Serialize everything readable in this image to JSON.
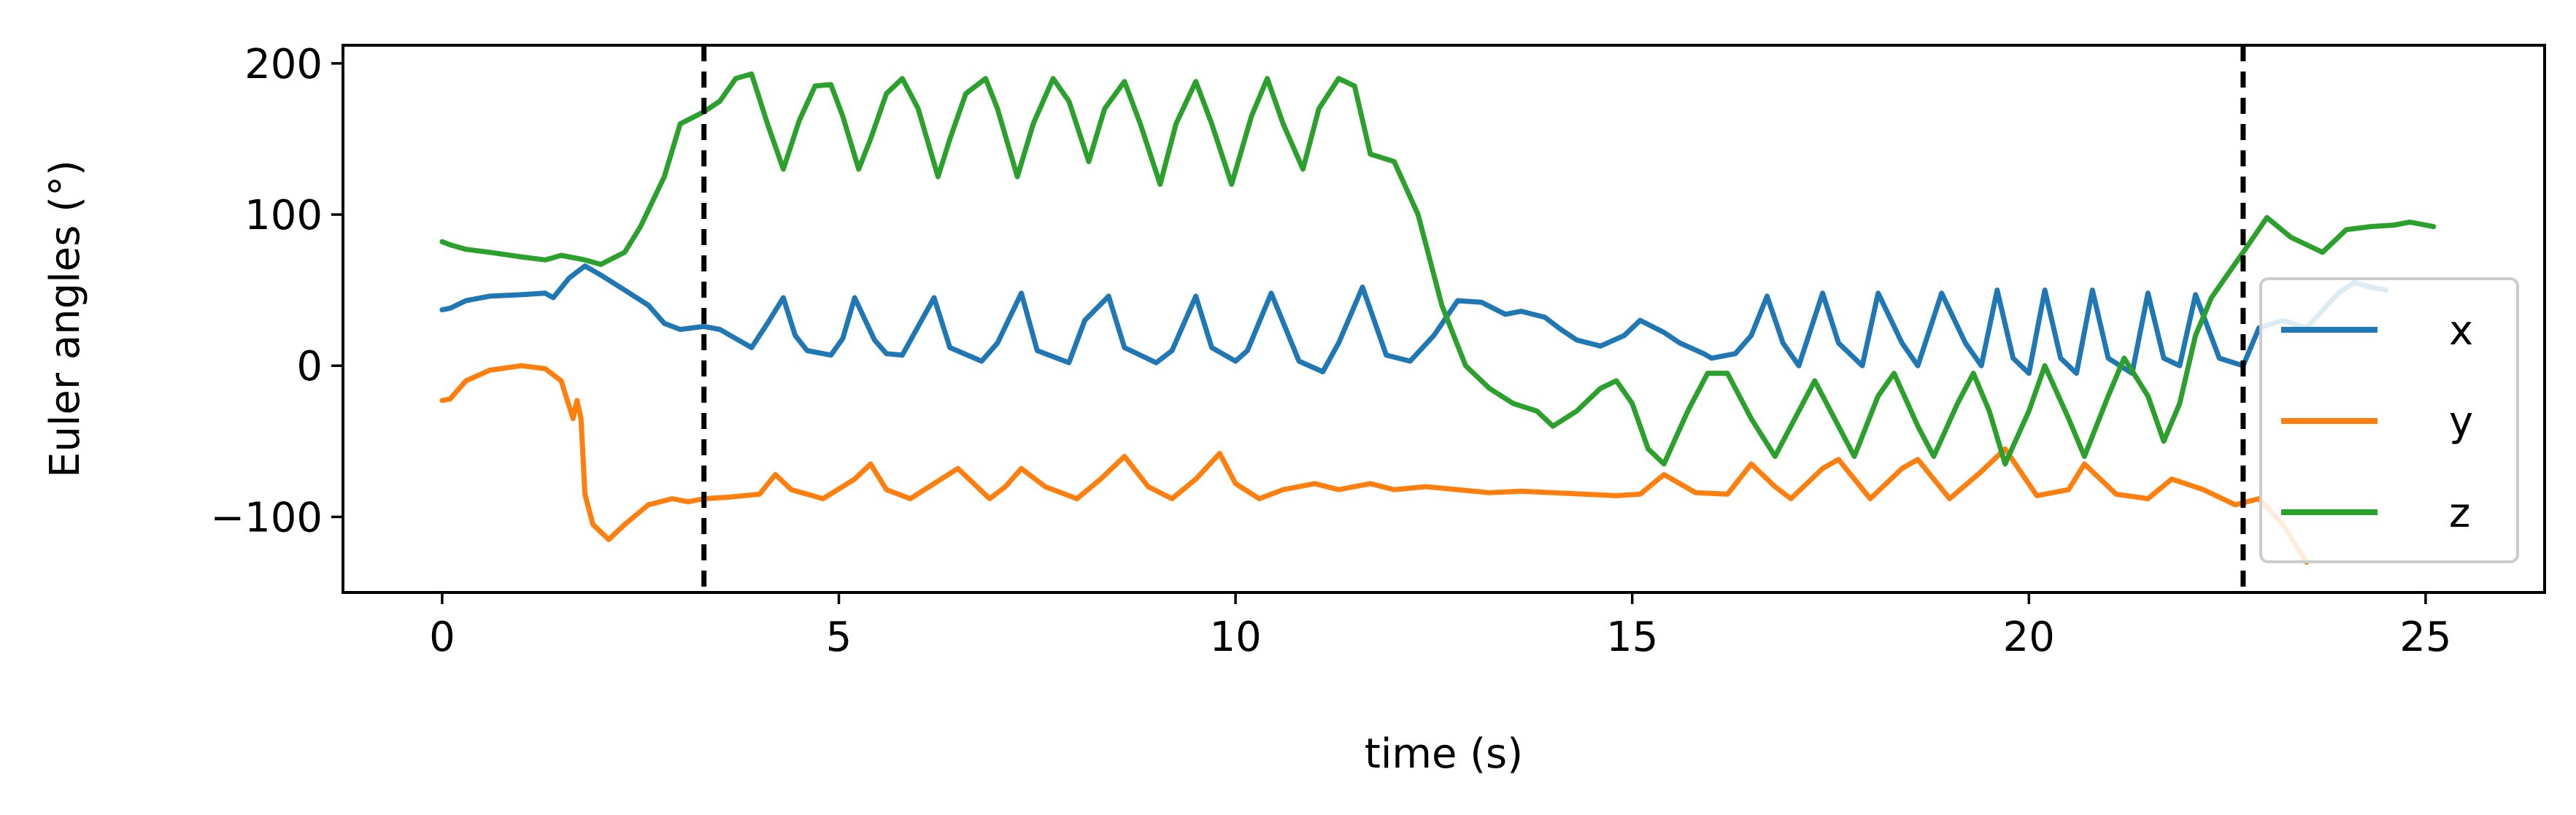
{
  "chart_data": {
    "type": "line",
    "xlabel": "time (s)",
    "ylabel": "Euler angles (°)",
    "xlim": [
      -1.25,
      26.5
    ],
    "ylim": [
      -150,
      212
    ],
    "xticks": [
      0,
      5,
      10,
      15,
      20,
      25
    ],
    "xtick_labels": [
      "0",
      "5",
      "10",
      "15",
      "20",
      "25"
    ],
    "yticks": [
      -100,
      0,
      100,
      200
    ],
    "ytick_labels": [
      "−100",
      "0",
      "100",
      "200"
    ],
    "grid": false,
    "legend_position": "lower right",
    "vertical_markers": {
      "style": "dashed",
      "color": "#000000",
      "x": [
        3.3,
        22.7
      ]
    },
    "series": [
      {
        "name": "x",
        "color": "#1f77b4",
        "x": [
          0,
          0.1,
          0.3,
          0.6,
          1.0,
          1.3,
          1.4,
          1.6,
          1.8,
          2.0,
          2.3,
          2.6,
          2.8,
          3.0,
          3.3,
          3.5,
          3.9,
          4.1,
          4.3,
          4.45,
          4.6,
          4.9,
          5.05,
          5.2,
          5.45,
          5.6,
          5.8,
          6.2,
          6.4,
          6.8,
          7.0,
          7.3,
          7.5,
          7.9,
          8.1,
          8.4,
          8.6,
          9.0,
          9.2,
          9.5,
          9.7,
          10.0,
          10.15,
          10.45,
          10.8,
          11.1,
          11.3,
          11.6,
          11.9,
          12.2,
          12.5,
          12.8,
          13.1,
          13.4,
          13.6,
          13.9,
          14.1,
          14.3,
          14.6,
          14.9,
          15.1,
          15.4,
          15.6,
          15.9,
          16.0,
          16.3,
          16.5,
          16.7,
          16.9,
          17.1,
          17.4,
          17.6,
          17.9,
          18.1,
          18.4,
          18.6,
          18.9,
          19.2,
          19.4,
          19.6,
          19.8,
          20.0,
          20.2,
          20.4,
          20.6,
          20.8,
          21.0,
          21.3,
          21.5,
          21.7,
          21.9,
          22.1,
          22.4,
          22.7,
          22.9,
          23.2,
          23.5,
          23.9,
          24.1,
          24.3,
          24.5
        ],
        "values": [
          37,
          38,
          43,
          46,
          47,
          48,
          45,
          58,
          66,
          60,
          50,
          40,
          28,
          24,
          26,
          24,
          12,
          28,
          45,
          20,
          10,
          7,
          18,
          45,
          17,
          8,
          7,
          45,
          12,
          3,
          15,
          48,
          10,
          2,
          30,
          46,
          12,
          2,
          10,
          46,
          12,
          3,
          10,
          48,
          3,
          -4,
          15,
          52,
          7,
          3,
          20,
          43,
          42,
          34,
          36,
          32,
          24,
          17,
          13,
          20,
          30,
          22,
          15,
          8,
          5,
          8,
          20,
          46,
          15,
          0,
          48,
          15,
          0,
          48,
          15,
          0,
          48,
          15,
          0,
          50,
          5,
          -5,
          50,
          5,
          -5,
          50,
          5,
          -5,
          48,
          5,
          0,
          47,
          5,
          0,
          25,
          30,
          25,
          48,
          55,
          52,
          50
        ]
      },
      {
        "name": "y",
        "color": "#ff7f0e",
        "x": [
          0,
          0.1,
          0.3,
          0.6,
          1.0,
          1.3,
          1.5,
          1.65,
          1.7,
          1.75,
          1.8,
          1.9,
          2.1,
          2.3,
          2.6,
          2.9,
          3.1,
          3.3,
          3.6,
          4.0,
          4.2,
          4.4,
          4.8,
          5.2,
          5.4,
          5.6,
          5.9,
          6.2,
          6.5,
          6.9,
          7.1,
          7.3,
          7.6,
          8.0,
          8.3,
          8.6,
          8.9,
          9.2,
          9.5,
          9.8,
          10.0,
          10.3,
          10.6,
          11.0,
          11.3,
          11.7,
          12.0,
          12.4,
          12.8,
          13.2,
          13.6,
          14.0,
          14.4,
          14.8,
          15.1,
          15.4,
          15.8,
          16.2,
          16.5,
          16.8,
          17.0,
          17.4,
          17.6,
          18.0,
          18.4,
          18.6,
          19.0,
          19.4,
          19.7,
          20.1,
          20.5,
          20.7,
          21.1,
          21.5,
          21.8,
          22.2,
          22.6,
          22.9,
          23.2,
          23.5
        ],
        "values": [
          -23,
          -22,
          -10,
          -3,
          0,
          -2,
          -10,
          -35,
          -23,
          -35,
          -85,
          -105,
          -115,
          -105,
          -92,
          -88,
          -90,
          -88,
          -87,
          -85,
          -72,
          -82,
          -88,
          -75,
          -65,
          -82,
          -88,
          -78,
          -68,
          -88,
          -80,
          -68,
          -80,
          -88,
          -75,
          -60,
          -80,
          -88,
          -75,
          -58,
          -78,
          -88,
          -82,
          -78,
          -82,
          -78,
          -82,
          -80,
          -82,
          -84,
          -83,
          -84,
          -85,
          -86,
          -85,
          -72,
          -84,
          -85,
          -65,
          -80,
          -88,
          -68,
          -62,
          -88,
          -68,
          -62,
          -88,
          -70,
          -55,
          -86,
          -82,
          -65,
          -85,
          -88,
          -75,
          -82,
          -92,
          -88,
          -105,
          -130
        ]
      },
      {
        "name": "z",
        "color": "#2ca02c",
        "x": [
          0,
          0.1,
          0.3,
          0.6,
          1.0,
          1.3,
          1.5,
          1.8,
          2.0,
          2.3,
          2.5,
          2.8,
          3.0,
          3.3,
          3.5,
          3.7,
          3.9,
          4.1,
          4.3,
          4.5,
          4.7,
          4.9,
          5.05,
          5.25,
          5.4,
          5.6,
          5.8,
          6.0,
          6.25,
          6.4,
          6.6,
          6.85,
          7.0,
          7.25,
          7.45,
          7.7,
          7.9,
          8.15,
          8.35,
          8.6,
          8.8,
          9.05,
          9.25,
          9.5,
          9.7,
          9.95,
          10.2,
          10.4,
          10.6,
          10.85,
          11.05,
          11.3,
          11.5,
          11.7,
          12.0,
          12.3,
          12.6,
          12.9,
          13.2,
          13.5,
          13.8,
          14.0,
          14.3,
          14.6,
          14.8,
          15.0,
          15.2,
          15.4,
          15.7,
          15.95,
          16.2,
          16.5,
          16.8,
          17.1,
          17.3,
          17.6,
          17.8,
          18.1,
          18.3,
          18.6,
          18.8,
          19.1,
          19.3,
          19.5,
          19.7,
          20.0,
          20.2,
          20.5,
          20.7,
          21.0,
          21.2,
          21.5,
          21.7,
          21.9,
          22.1,
          22.3,
          22.5,
          22.7,
          23.0,
          23.3,
          23.7,
          24.0,
          24.3,
          24.6,
          24.8,
          25.1
        ],
        "values": [
          82,
          80,
          77,
          75,
          72,
          70,
          73,
          70,
          67,
          75,
          92,
          125,
          160,
          168,
          175,
          190,
          193,
          160,
          130,
          162,
          185,
          186,
          165,
          130,
          150,
          180,
          190,
          170,
          125,
          150,
          180,
          190,
          170,
          125,
          160,
          190,
          175,
          135,
          170,
          188,
          160,
          120,
          160,
          188,
          160,
          120,
          165,
          190,
          160,
          130,
          170,
          190,
          185,
          140,
          135,
          100,
          40,
          0,
          -15,
          -25,
          -30,
          -40,
          -30,
          -15,
          -10,
          -25,
          -55,
          -65,
          -30,
          -5,
          -5,
          -35,
          -60,
          -30,
          -10,
          -40,
          -60,
          -20,
          -5,
          -40,
          -60,
          -25,
          -5,
          -30,
          -65,
          -30,
          0,
          -35,
          -60,
          -20,
          5,
          -20,
          -50,
          -25,
          20,
          45,
          60,
          75,
          98,
          85,
          75,
          90,
          92,
          93,
          95,
          92
        ]
      }
    ]
  }
}
